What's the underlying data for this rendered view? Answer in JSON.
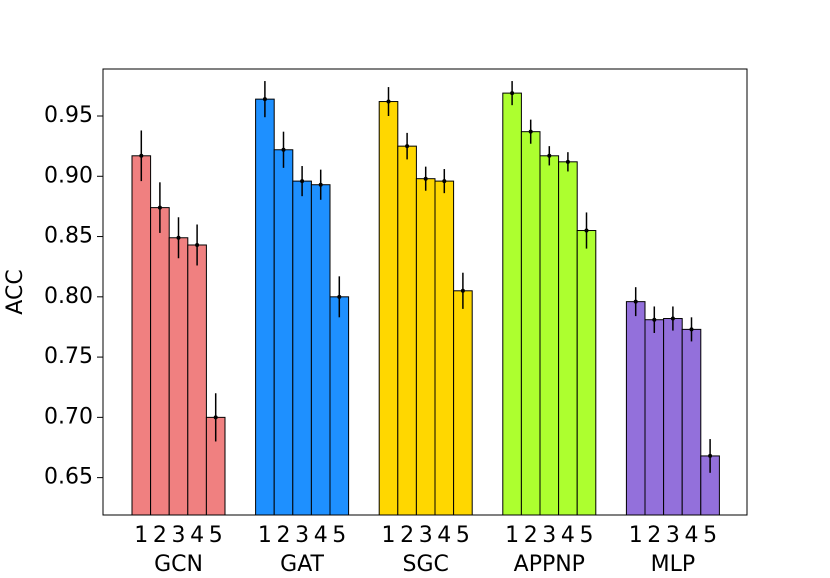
{
  "chart_data": {
    "type": "bar",
    "ylabel": "ACC",
    "categories": [
      "1",
      "2",
      "3",
      "4",
      "5"
    ],
    "series": [
      {
        "name": "GCN",
        "color": "#f08080",
        "values": [
          0.917,
          0.874,
          0.849,
          0.843,
          0.7
        ],
        "errors": [
          0.021,
          0.021,
          0.017,
          0.017,
          0.02
        ]
      },
      {
        "name": "GAT",
        "color": "#1e90ff",
        "values": [
          0.964,
          0.922,
          0.896,
          0.893,
          0.8
        ],
        "errors": [
          0.015,
          0.015,
          0.0125,
          0.0125,
          0.017
        ]
      },
      {
        "name": "SGC",
        "color": "#ffd700",
        "values": [
          0.962,
          0.925,
          0.898,
          0.896,
          0.805
        ],
        "errors": [
          0.012,
          0.011,
          0.01,
          0.01,
          0.015
        ]
      },
      {
        "name": "APPNP",
        "color": "#adff2f",
        "values": [
          0.969,
          0.937,
          0.917,
          0.912,
          0.855
        ],
        "errors": [
          0.01,
          0.01,
          0.008,
          0.008,
          0.015
        ]
      },
      {
        "name": "MLP",
        "color": "#9370db",
        "values": [
          0.796,
          0.781,
          0.782,
          0.773,
          0.668
        ],
        "errors": [
          0.012,
          0.011,
          0.01,
          0.01,
          0.014
        ]
      }
    ],
    "ylim": [
      0.619,
      0.989
    ],
    "yticks": [
      0.65,
      {
        "value": 0.7,
        "label": "0.70"
      },
      0.75,
      {
        "value": 0.8,
        "label": "0.80"
      },
      0.85,
      {
        "value": 0.9,
        "label": "0.90"
      },
      0.95
    ]
  }
}
